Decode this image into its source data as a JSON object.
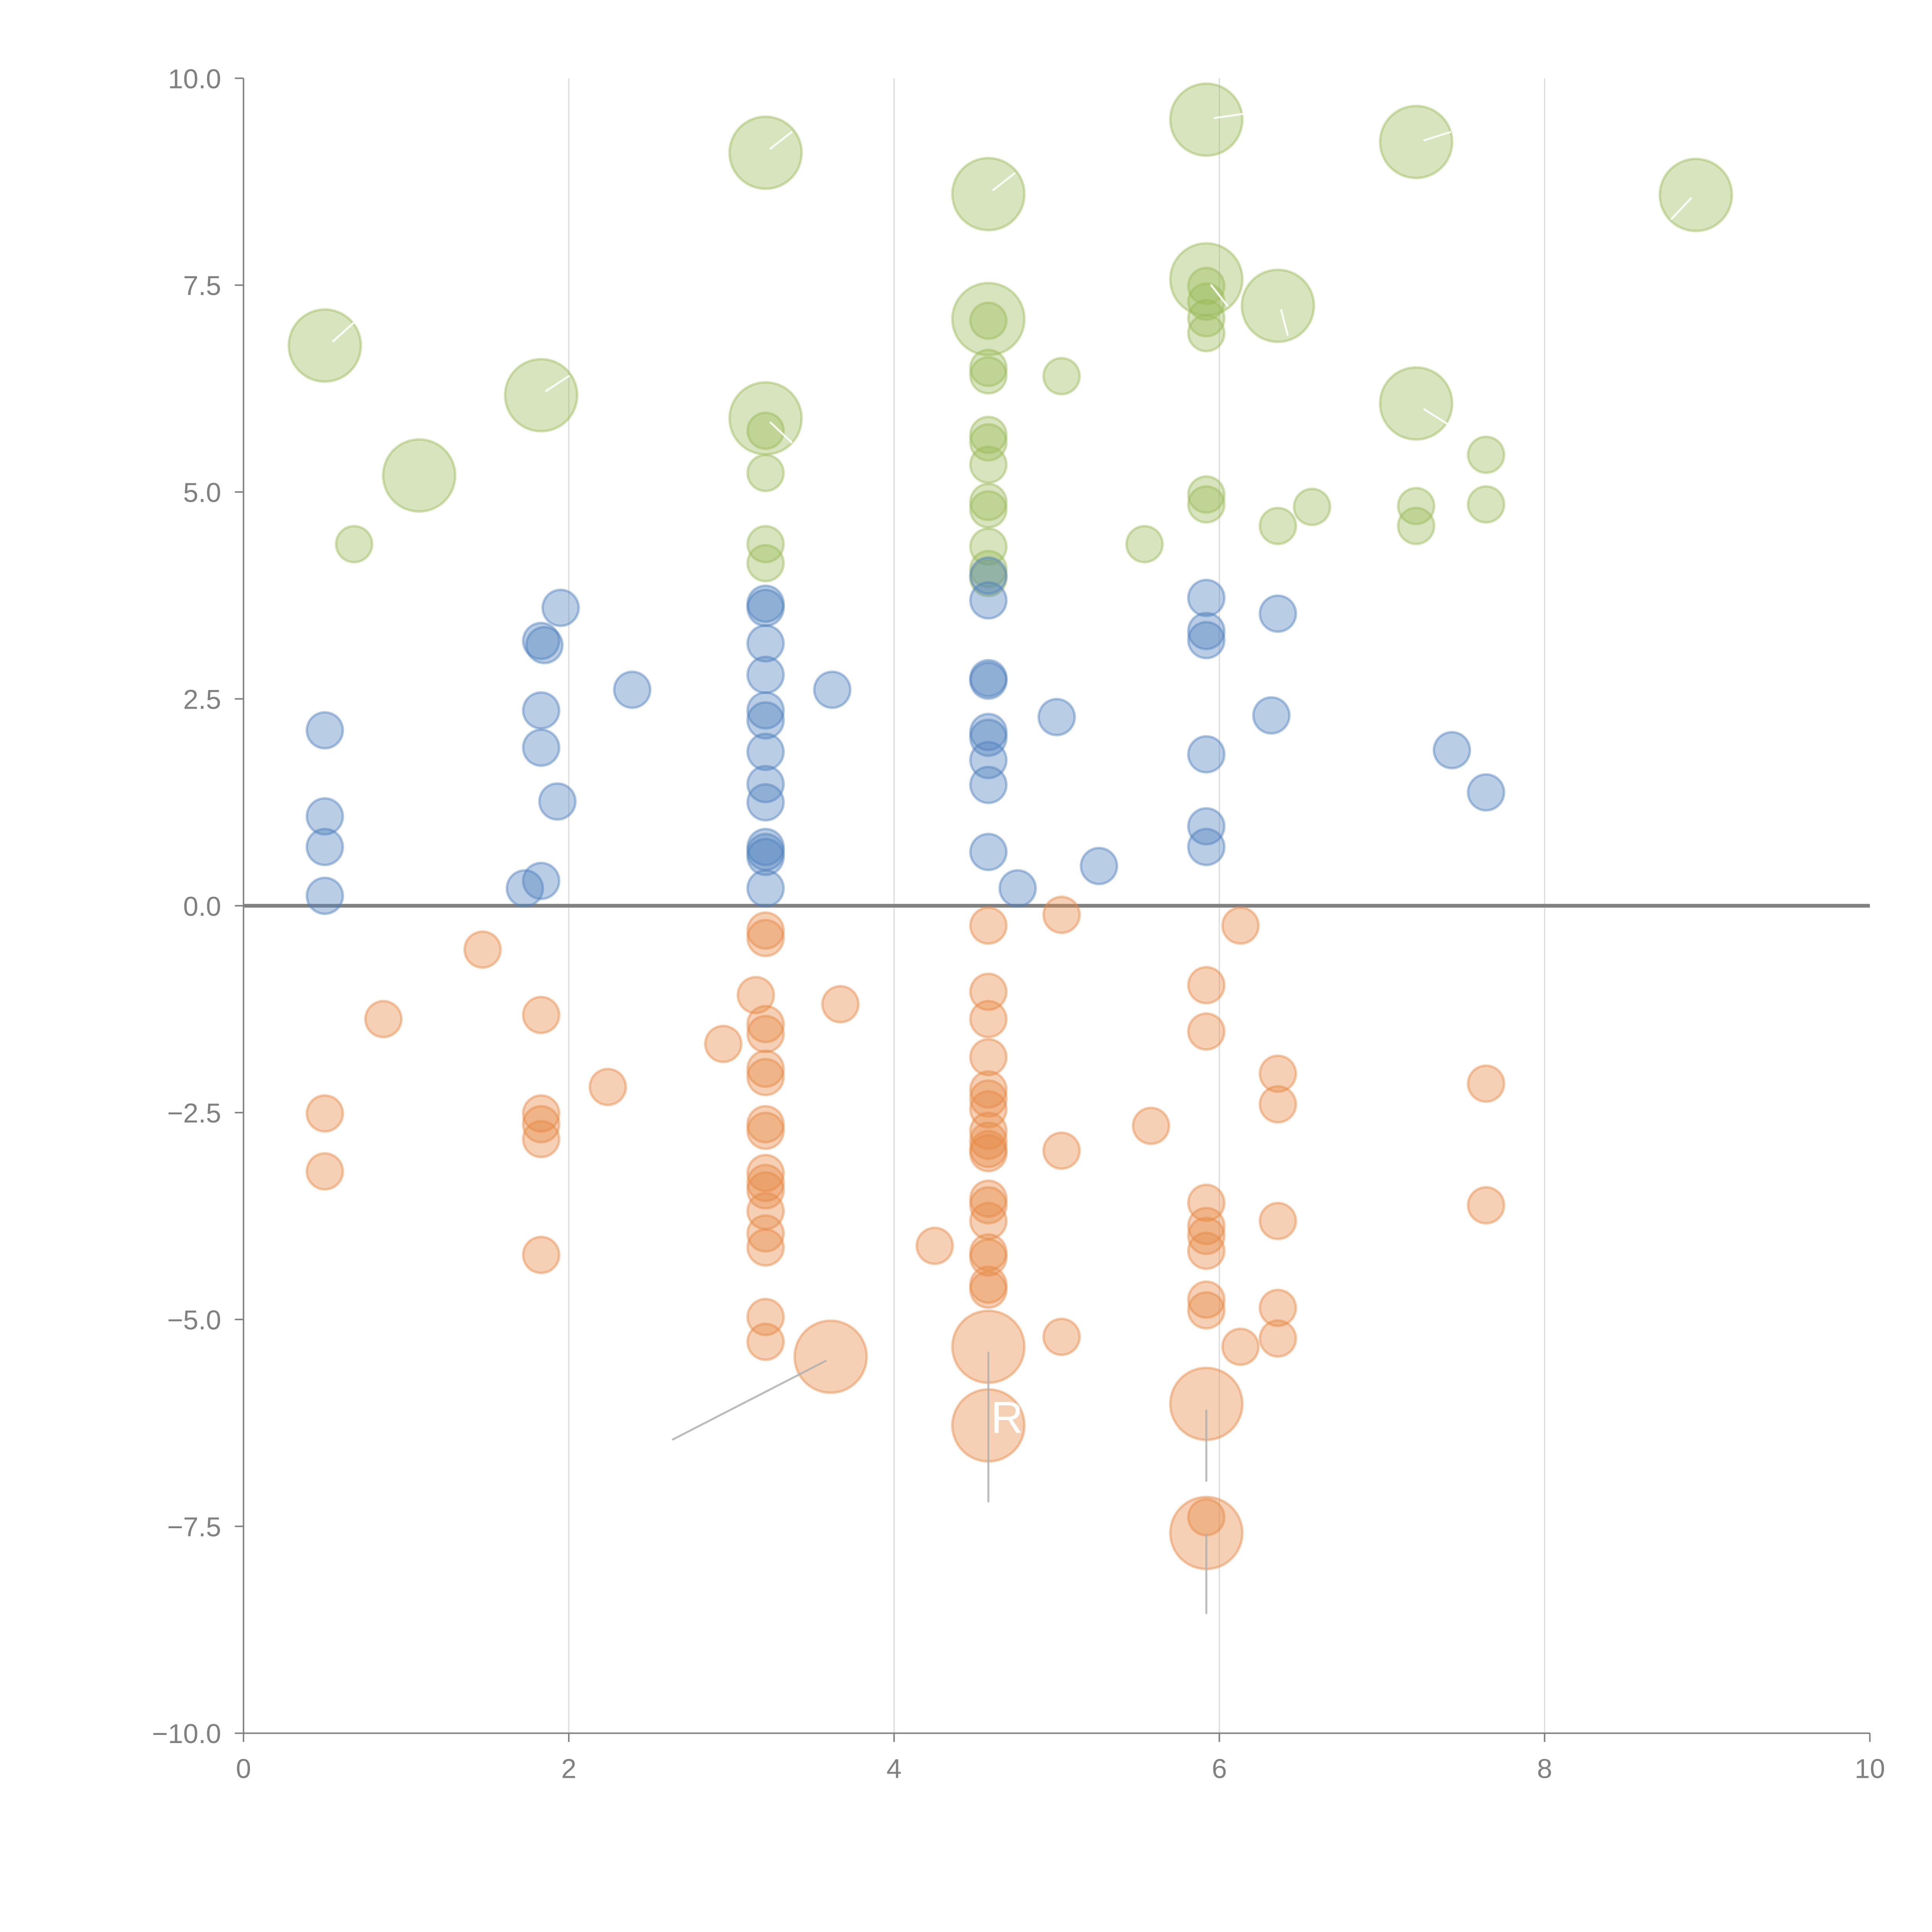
{
  "chart_data": {
    "type": "scatter",
    "title": "",
    "xlabel": "",
    "ylabel": "",
    "xlim": [
      0,
      10
    ],
    "ylim": [
      -10,
      10
    ],
    "x_ticks": [
      "0",
      "2",
      "4",
      "6",
      "8",
      "10"
    ],
    "y_ticks": [
      "10.0",
      "7.5",
      "5.0",
      "2.5",
      "0.0",
      "−2.5",
      "−5.0",
      "−7.5",
      "−10.0"
    ],
    "x_tick_values": [
      0,
      2,
      4,
      6,
      8,
      10
    ],
    "y_tick_values": [
      10,
      7.5,
      5,
      2.5,
      0,
      -2.5,
      -5,
      -7.5,
      -10
    ],
    "vertical_gridlines": [
      2,
      4,
      6,
      8
    ],
    "zero_line": 0,
    "legend": "none",
    "series": [
      {
        "name": "green",
        "color": "#9bbb59",
        "points": [
          {
            "x": 0.5,
            "y": 6.77,
            "size": "large"
          },
          {
            "x": 1.83,
            "y": 6.17,
            "size": "large"
          },
          {
            "x": 1.08,
            "y": 5.2,
            "size": "large"
          },
          {
            "x": 3.21,
            "y": 9.1,
            "size": "large"
          },
          {
            "x": 3.21,
            "y": 5.89,
            "size": "large"
          },
          {
            "x": 4.58,
            "y": 8.6,
            "size": "large"
          },
          {
            "x": 4.58,
            "y": 7.09,
            "size": "large"
          },
          {
            "x": 5.92,
            "y": 9.5,
            "size": "large"
          },
          {
            "x": 5.92,
            "y": 7.57,
            "size": "large"
          },
          {
            "x": 6.36,
            "y": 7.25,
            "size": "large"
          },
          {
            "x": 7.21,
            "y": 9.23,
            "size": "large"
          },
          {
            "x": 7.21,
            "y": 6.07,
            "size": "large"
          },
          {
            "x": 8.93,
            "y": 8.59,
            "size": "large"
          },
          {
            "x": 0.68,
            "y": 4.37
          },
          {
            "x": 3.21,
            "y": 5.74
          },
          {
            "x": 3.21,
            "y": 5.23
          },
          {
            "x": 3.21,
            "y": 4.37
          },
          {
            "x": 3.21,
            "y": 4.14
          },
          {
            "x": 4.58,
            "y": 7.07
          },
          {
            "x": 4.58,
            "y": 6.5
          },
          {
            "x": 4.58,
            "y": 6.41
          },
          {
            "x": 4.58,
            "y": 5.69
          },
          {
            "x": 4.58,
            "y": 5.6
          },
          {
            "x": 4.58,
            "y": 5.33
          },
          {
            "x": 4.58,
            "y": 4.88
          },
          {
            "x": 4.58,
            "y": 4.79
          },
          {
            "x": 4.58,
            "y": 4.34
          },
          {
            "x": 4.58,
            "y": 4.07
          },
          {
            "x": 4.58,
            "y": 3.96
          },
          {
            "x": 5.03,
            "y": 6.4
          },
          {
            "x": 5.54,
            "y": 4.37
          },
          {
            "x": 5.92,
            "y": 7.49
          },
          {
            "x": 5.92,
            "y": 7.3
          },
          {
            "x": 5.92,
            "y": 7.1
          },
          {
            "x": 5.92,
            "y": 6.92
          },
          {
            "x": 5.92,
            "y": 4.97
          },
          {
            "x": 5.92,
            "y": 4.85
          },
          {
            "x": 6.36,
            "y": 4.59
          },
          {
            "x": 6.57,
            "y": 4.82
          },
          {
            "x": 7.21,
            "y": 4.83
          },
          {
            "x": 7.21,
            "y": 4.59
          },
          {
            "x": 7.64,
            "y": 5.45
          },
          {
            "x": 7.64,
            "y": 4.85
          }
        ]
      },
      {
        "name": "blue",
        "color": "#4f81bd",
        "points": [
          {
            "x": 0.5,
            "y": 2.12
          },
          {
            "x": 0.5,
            "y": 1.08
          },
          {
            "x": 0.5,
            "y": 0.71
          },
          {
            "x": 0.5,
            "y": 0.12
          },
          {
            "x": 1.73,
            "y": 0.21
          },
          {
            "x": 1.83,
            "y": 0.3
          },
          {
            "x": 1.83,
            "y": 3.2
          },
          {
            "x": 1.85,
            "y": 3.15
          },
          {
            "x": 1.95,
            "y": 3.6
          },
          {
            "x": 1.83,
            "y": 2.36
          },
          {
            "x": 1.83,
            "y": 1.91
          },
          {
            "x": 1.93,
            "y": 1.26
          },
          {
            "x": 2.39,
            "y": 2.61
          },
          {
            "x": 3.21,
            "y": 3.65
          },
          {
            "x": 3.21,
            "y": 3.6
          },
          {
            "x": 3.21,
            "y": 3.17
          },
          {
            "x": 3.21,
            "y": 2.79
          },
          {
            "x": 3.21,
            "y": 2.36
          },
          {
            "x": 3.21,
            "y": 2.24
          },
          {
            "x": 3.21,
            "y": 1.86
          },
          {
            "x": 3.21,
            "y": 1.47
          },
          {
            "x": 3.21,
            "y": 1.25
          },
          {
            "x": 3.21,
            "y": 0.71
          },
          {
            "x": 3.21,
            "y": 0.65
          },
          {
            "x": 3.21,
            "y": 0.59
          },
          {
            "x": 3.21,
            "y": 0.21
          },
          {
            "x": 3.62,
            "y": 2.61
          },
          {
            "x": 4.58,
            "y": 3.99
          },
          {
            "x": 4.58,
            "y": 3.69
          },
          {
            "x": 4.58,
            "y": 2.75
          },
          {
            "x": 4.58,
            "y": 2.72
          },
          {
            "x": 4.58,
            "y": 2.1
          },
          {
            "x": 4.58,
            "y": 2.03
          },
          {
            "x": 4.58,
            "y": 1.76
          },
          {
            "x": 4.58,
            "y": 1.46
          },
          {
            "x": 4.58,
            "y": 0.65
          },
          {
            "x": 4.76,
            "y": 0.21
          },
          {
            "x": 5.0,
            "y": 2.28
          },
          {
            "x": 5.26,
            "y": 0.48
          },
          {
            "x": 5.92,
            "y": 3.72
          },
          {
            "x": 5.92,
            "y": 3.32
          },
          {
            "x": 5.92,
            "y": 3.21
          },
          {
            "x": 5.92,
            "y": 1.83
          },
          {
            "x": 5.92,
            "y": 0.96
          },
          {
            "x": 5.92,
            "y": 0.71
          },
          {
            "x": 6.36,
            "y": 3.53
          },
          {
            "x": 6.32,
            "y": 2.3
          },
          {
            "x": 7.43,
            "y": 1.88
          },
          {
            "x": 7.64,
            "y": 1.37
          }
        ]
      },
      {
        "name": "orange",
        "color": "#e68a45",
        "points": [
          {
            "x": 1.47,
            "y": -0.53
          },
          {
            "x": 0.86,
            "y": -1.37
          },
          {
            "x": 0.5,
            "y": -2.51
          },
          {
            "x": 0.5,
            "y": -3.21
          },
          {
            "x": 1.83,
            "y": -1.32
          },
          {
            "x": 1.83,
            "y": -2.51
          },
          {
            "x": 1.83,
            "y": -2.64
          },
          {
            "x": 1.83,
            "y": -2.82
          },
          {
            "x": 1.83,
            "y": -4.22
          },
          {
            "x": 2.24,
            "y": -2.19
          },
          {
            "x": 2.95,
            "y": -1.67
          },
          {
            "x": 3.15,
            "y": -1.08
          },
          {
            "x": 3.21,
            "y": -0.3
          },
          {
            "x": 3.21,
            "y": -0.39
          },
          {
            "x": 3.21,
            "y": -1.43
          },
          {
            "x": 3.21,
            "y": -1.55
          },
          {
            "x": 3.21,
            "y": -1.97
          },
          {
            "x": 3.21,
            "y": -2.07
          },
          {
            "x": 3.21,
            "y": -2.64
          },
          {
            "x": 3.21,
            "y": -2.72
          },
          {
            "x": 3.21,
            "y": -3.23
          },
          {
            "x": 3.21,
            "y": -3.35
          },
          {
            "x": 3.21,
            "y": -3.44
          },
          {
            "x": 3.21,
            "y": -3.69
          },
          {
            "x": 3.21,
            "y": -3.96
          },
          {
            "x": 3.21,
            "y": -4.13
          },
          {
            "x": 3.21,
            "y": -4.97
          },
          {
            "x": 3.21,
            "y": -5.27
          },
          {
            "x": 3.61,
            "y": -5.45,
            "size": "large"
          },
          {
            "x": 3.67,
            "y": -1.19
          },
          {
            "x": 4.25,
            "y": -4.11
          },
          {
            "x": 4.58,
            "y": -0.24
          },
          {
            "x": 4.58,
            "y": -1.04
          },
          {
            "x": 4.58,
            "y": -1.37
          },
          {
            "x": 4.58,
            "y": -1.83
          },
          {
            "x": 4.58,
            "y": -2.22
          },
          {
            "x": 4.58,
            "y": -2.33
          },
          {
            "x": 4.58,
            "y": -2.46
          },
          {
            "x": 4.58,
            "y": -2.72
          },
          {
            "x": 4.58,
            "y": -2.84
          },
          {
            "x": 4.58,
            "y": -2.94
          },
          {
            "x": 4.58,
            "y": -2.99
          },
          {
            "x": 4.58,
            "y": -3.54
          },
          {
            "x": 4.58,
            "y": -3.62
          },
          {
            "x": 4.58,
            "y": -3.81
          },
          {
            "x": 4.58,
            "y": -4.19
          },
          {
            "x": 4.58,
            "y": -4.25
          },
          {
            "x": 4.58,
            "y": -4.58
          },
          {
            "x": 4.58,
            "y": -4.64
          },
          {
            "x": 4.58,
            "y": -5.33,
            "size": "large"
          },
          {
            "x": 4.58,
            "y": -6.28,
            "size": "large"
          },
          {
            "x": 5.03,
            "y": -0.11
          },
          {
            "x": 5.03,
            "y": -2.96
          },
          {
            "x": 5.03,
            "y": -5.21
          },
          {
            "x": 5.58,
            "y": -2.66
          },
          {
            "x": 5.92,
            "y": -0.96
          },
          {
            "x": 5.92,
            "y": -1.52
          },
          {
            "x": 5.92,
            "y": -3.59
          },
          {
            "x": 5.92,
            "y": -3.87
          },
          {
            "x": 5.92,
            "y": -3.99
          },
          {
            "x": 5.92,
            "y": -4.17
          },
          {
            "x": 5.92,
            "y": -4.76
          },
          {
            "x": 5.92,
            "y": -4.89
          },
          {
            "x": 5.92,
            "y": -6.02,
            "size": "large"
          },
          {
            "x": 5.92,
            "y": -7.39
          },
          {
            "x": 5.92,
            "y": -7.58,
            "size": "large"
          },
          {
            "x": 6.13,
            "y": -0.24
          },
          {
            "x": 6.13,
            "y": -5.33
          },
          {
            "x": 6.36,
            "y": -2.03
          },
          {
            "x": 6.36,
            "y": -2.4
          },
          {
            "x": 6.36,
            "y": -3.81
          },
          {
            "x": 6.36,
            "y": -4.86
          },
          {
            "x": 6.36,
            "y": -5.23
          },
          {
            "x": 7.64,
            "y": -2.15
          },
          {
            "x": 7.64,
            "y": -3.62
          }
        ]
      }
    ],
    "annotations": [
      {
        "text": "R",
        "x": 4.58,
        "y": -6.28
      }
    ],
    "leader_lines": [
      {
        "x1": 3.58,
        "y1": -5.5,
        "x2": 2.64,
        "y2": -6.45,
        "color": "#b0b0b0"
      },
      {
        "x1": 4.58,
        "y1": -5.4,
        "x2": 4.58,
        "y2": -7.2,
        "color": "#b0b0b0"
      },
      {
        "x1": 5.92,
        "y1": -6.1,
        "x2": 5.92,
        "y2": -6.95,
        "color": "#b0b0b0"
      },
      {
        "x1": 5.92,
        "y1": -7.6,
        "x2": 5.92,
        "y2": -8.55,
        "color": "#b0b0b0"
      },
      {
        "x1": 0.55,
        "y1": 6.82,
        "x2": 0.68,
        "y2": 7.05,
        "color": "#ffffff"
      },
      {
        "x1": 1.86,
        "y1": 6.22,
        "x2": 2.0,
        "y2": 6.4,
        "color": "#ffffff"
      },
      {
        "x1": 3.24,
        "y1": 9.15,
        "x2": 3.37,
        "y2": 9.35,
        "color": "#ffffff"
      },
      {
        "x1": 3.24,
        "y1": 5.84,
        "x2": 3.37,
        "y2": 5.6,
        "color": "#ffffff"
      },
      {
        "x1": 4.61,
        "y1": 8.65,
        "x2": 4.74,
        "y2": 8.85,
        "color": "#ffffff"
      },
      {
        "x1": 5.97,
        "y1": 9.52,
        "x2": 6.15,
        "y2": 9.57,
        "color": "#ffffff"
      },
      {
        "x1": 5.95,
        "y1": 7.5,
        "x2": 6.05,
        "y2": 7.25,
        "color": "#ffffff"
      },
      {
        "x1": 6.38,
        "y1": 7.2,
        "x2": 6.42,
        "y2": 6.9,
        "color": "#ffffff"
      },
      {
        "x1": 7.26,
        "y1": 9.25,
        "x2": 7.42,
        "y2": 9.35,
        "color": "#ffffff"
      },
      {
        "x1": 7.26,
        "y1": 6.0,
        "x2": 7.42,
        "y2": 5.8,
        "color": "#ffffff"
      },
      {
        "x1": 8.9,
        "y1": 8.55,
        "x2": 8.78,
        "y2": 8.3,
        "color": "#ffffff"
      }
    ]
  }
}
